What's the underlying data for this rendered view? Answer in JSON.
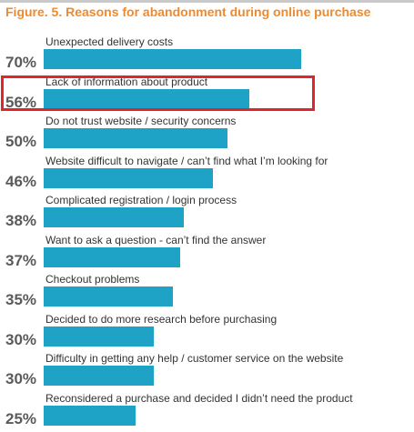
{
  "figure": {
    "title": "Figure. 5. Reasons for abandonment during online purchase",
    "highlighted_category": "Lack of information about product"
  },
  "chart_data": {
    "type": "bar",
    "orientation": "horizontal",
    "title": "Figure. 5. Reasons for abandonment during online purchase",
    "categories": [
      "Unexpected delivery costs",
      "Lack of information about product",
      "Do not trust website / security concerns",
      "Website difficult to navigate / can’t find what I’m looking for",
      "Complicated registration / login process",
      "Want to ask a question - can’t find the answer",
      "Checkout problems",
      "Decided to do more research before purchasing",
      "Difficulty in getting any help / customer service on the website",
      "Reconsidered a purchase and decided I didn’t need the product"
    ],
    "values": [
      70,
      56,
      50,
      46,
      38,
      37,
      35,
      30,
      30,
      25
    ],
    "value_labels": [
      "70%",
      "56%",
      "50%",
      "46%",
      "38%",
      "37%",
      "35%",
      "30%",
      "30%",
      "25%"
    ],
    "unit": "%",
    "xlim": [
      0,
      100
    ],
    "grid": false,
    "legend": "none",
    "bar_color": "#1ea3c6",
    "title_color": "#ee8a2f",
    "highlight_color": "#e0252b"
  }
}
